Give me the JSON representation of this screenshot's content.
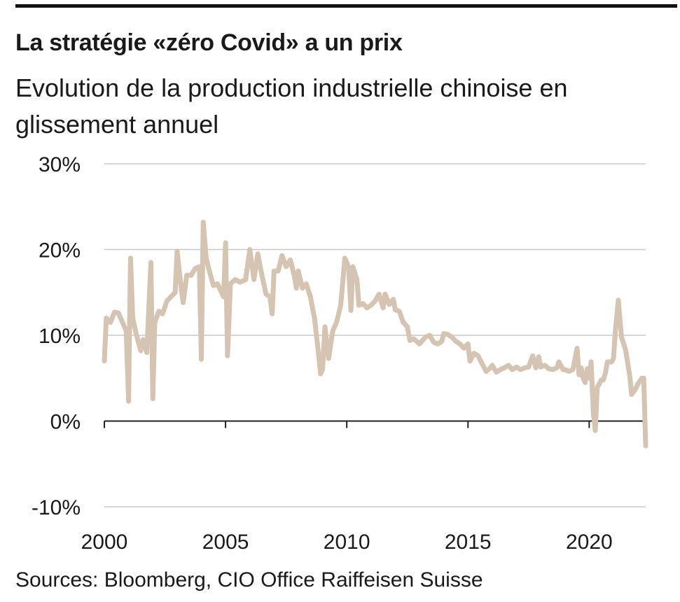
{
  "header": {
    "title": "La stratégie «zéro Covid» a un prix",
    "subtitle": "Evolution de la production industrielle chinoise en glissement annuel"
  },
  "footer": {
    "source": "Sources: Bloomberg, CIO Office Raiffeisen Suisse"
  },
  "colors": {
    "line": "#d6c4b2",
    "grid": "#c8c8c8",
    "axis": "#222222"
  },
  "chart_data": {
    "type": "line",
    "title": "La stratégie «zéro Covid» a un prix",
    "subtitle": "Evolution de la production industrielle chinoise en glissement annuel",
    "xlabel": "",
    "ylabel": "",
    "xlim": [
      2000,
      2022.33
    ],
    "ylim": [
      -10,
      30
    ],
    "y_ticks": [
      -10,
      0,
      10,
      20,
      30
    ],
    "y_tick_labels": [
      "-10%",
      "0%",
      "10%",
      "20%",
      "30%"
    ],
    "x_ticks": [
      2000,
      2005,
      2010,
      2015,
      2020
    ],
    "x_tick_labels": [
      "2000",
      "2005",
      "2010",
      "2015",
      "2020"
    ],
    "grid": true,
    "legend": "none",
    "series": [
      {
        "color": "#d6c4b2",
        "points": [
          [
            2000.0,
            7.0
          ],
          [
            2000.08,
            12.0
          ],
          [
            2000.25,
            11.5
          ],
          [
            2000.42,
            12.7
          ],
          [
            2000.58,
            12.6
          ],
          [
            2000.75,
            11.5
          ],
          [
            2000.9,
            10.5
          ],
          [
            2001.0,
            2.3
          ],
          [
            2001.08,
            19.0
          ],
          [
            2001.17,
            12.0
          ],
          [
            2001.33,
            10.0
          ],
          [
            2001.5,
            8.2
          ],
          [
            2001.6,
            9.5
          ],
          [
            2001.75,
            8.0
          ],
          [
            2001.92,
            18.5
          ],
          [
            2002.0,
            2.6
          ],
          [
            2002.08,
            11.5
          ],
          [
            2002.25,
            12.8
          ],
          [
            2002.4,
            12.5
          ],
          [
            2002.58,
            14.0
          ],
          [
            2002.75,
            14.5
          ],
          [
            2002.92,
            15.0
          ],
          [
            2003.0,
            19.8
          ],
          [
            2003.17,
            15.5
          ],
          [
            2003.25,
            13.8
          ],
          [
            2003.4,
            17.0
          ],
          [
            2003.58,
            17.0
          ],
          [
            2003.75,
            17.8
          ],
          [
            2003.92,
            18.0
          ],
          [
            2004.0,
            7.2
          ],
          [
            2004.08,
            23.2
          ],
          [
            2004.2,
            19.0
          ],
          [
            2004.33,
            17.5
          ],
          [
            2004.5,
            15.8
          ],
          [
            2004.67,
            16.0
          ],
          [
            2004.83,
            15.0
          ],
          [
            2004.92,
            14.5
          ],
          [
            2005.0,
            20.8
          ],
          [
            2005.08,
            7.6
          ],
          [
            2005.2,
            16.0
          ],
          [
            2005.4,
            16.5
          ],
          [
            2005.6,
            16.2
          ],
          [
            2005.83,
            16.5
          ],
          [
            2006.0,
            20.0
          ],
          [
            2006.17,
            16.5
          ],
          [
            2006.33,
            19.5
          ],
          [
            2006.5,
            17.0
          ],
          [
            2006.67,
            14.8
          ],
          [
            2006.83,
            14.5
          ],
          [
            2006.92,
            12.5
          ],
          [
            2007.0,
            17.5
          ],
          [
            2007.17,
            17.5
          ],
          [
            2007.33,
            19.3
          ],
          [
            2007.5,
            18.0
          ],
          [
            2007.67,
            18.8
          ],
          [
            2007.83,
            17.0
          ],
          [
            2007.92,
            15.5
          ],
          [
            2008.0,
            17.5
          ],
          [
            2008.17,
            15.5
          ],
          [
            2008.33,
            16.0
          ],
          [
            2008.5,
            14.5
          ],
          [
            2008.67,
            12.0
          ],
          [
            2008.83,
            8.0
          ],
          [
            2008.92,
            5.5
          ],
          [
            2009.0,
            6.0
          ],
          [
            2009.1,
            11.0
          ],
          [
            2009.25,
            7.3
          ],
          [
            2009.42,
            10.5
          ],
          [
            2009.58,
            11.5
          ],
          [
            2009.75,
            13.5
          ],
          [
            2009.92,
            19.0
          ],
          [
            2010.0,
            18.5
          ],
          [
            2010.08,
            17.8
          ],
          [
            2010.17,
            12.9
          ],
          [
            2010.25,
            18.0
          ],
          [
            2010.42,
            16.5
          ],
          [
            2010.5,
            13.5
          ],
          [
            2010.67,
            13.7
          ],
          [
            2010.83,
            13.2
          ],
          [
            2011.0,
            13.5
          ],
          [
            2011.17,
            14.0
          ],
          [
            2011.33,
            14.8
          ],
          [
            2011.5,
            13.2
          ],
          [
            2011.58,
            14.8
          ],
          [
            2011.75,
            13.6
          ],
          [
            2011.92,
            14.2
          ],
          [
            2012.0,
            13.0
          ],
          [
            2012.17,
            12.8
          ],
          [
            2012.33,
            11.5
          ],
          [
            2012.5,
            11.0
          ],
          [
            2012.6,
            9.4
          ],
          [
            2012.75,
            9.6
          ],
          [
            2012.92,
            9.2
          ],
          [
            2013.0,
            9.0
          ],
          [
            2013.25,
            9.8
          ],
          [
            2013.42,
            10.0
          ],
          [
            2013.58,
            9.2
          ],
          [
            2013.75,
            9.0
          ],
          [
            2013.92,
            9.3
          ],
          [
            2014.0,
            10.2
          ],
          [
            2014.17,
            10.1
          ],
          [
            2014.33,
            9.8
          ],
          [
            2014.5,
            9.3
          ],
          [
            2014.67,
            9.0
          ],
          [
            2014.83,
            8.5
          ],
          [
            2015.0,
            9.0
          ],
          [
            2015.08,
            7.0
          ],
          [
            2015.25,
            7.9
          ],
          [
            2015.42,
            7.6
          ],
          [
            2015.58,
            6.7
          ],
          [
            2015.75,
            5.8
          ],
          [
            2015.92,
            6.2
          ],
          [
            2016.0,
            6.5
          ],
          [
            2016.17,
            5.7
          ],
          [
            2016.33,
            6.0
          ],
          [
            2016.5,
            6.2
          ],
          [
            2016.67,
            6.5
          ],
          [
            2016.83,
            6.0
          ],
          [
            2017.0,
            6.3
          ],
          [
            2017.17,
            6.0
          ],
          [
            2017.33,
            6.2
          ],
          [
            2017.5,
            6.3
          ],
          [
            2017.67,
            7.6
          ],
          [
            2017.8,
            6.2
          ],
          [
            2017.92,
            7.5
          ],
          [
            2018.0,
            6.3
          ],
          [
            2018.17,
            6.5
          ],
          [
            2018.33,
            6.1
          ],
          [
            2018.5,
            6.0
          ],
          [
            2018.67,
            6.2
          ],
          [
            2018.75,
            6.9
          ],
          [
            2018.92,
            6.0
          ],
          [
            2019.0,
            6.0
          ],
          [
            2019.17,
            5.8
          ],
          [
            2019.33,
            6.0
          ],
          [
            2019.5,
            8.5
          ],
          [
            2019.58,
            5.4
          ],
          [
            2019.67,
            6.2
          ],
          [
            2019.75,
            5.0
          ],
          [
            2019.83,
            4.5
          ],
          [
            2019.92,
            6.1
          ],
          [
            2020.0,
            5.0
          ],
          [
            2020.08,
            6.9
          ],
          [
            2020.17,
            1.0
          ],
          [
            2020.25,
            -1.1
          ],
          [
            2020.33,
            3.9
          ],
          [
            2020.5,
            4.8
          ],
          [
            2020.58,
            4.8
          ],
          [
            2020.67,
            5.6
          ],
          [
            2020.75,
            6.9
          ],
          [
            2020.92,
            6.9
          ],
          [
            2021.0,
            7.3
          ],
          [
            2021.08,
            10.5
          ],
          [
            2021.2,
            14.1
          ],
          [
            2021.33,
            9.8
          ],
          [
            2021.5,
            8.3
          ],
          [
            2021.67,
            5.3
          ],
          [
            2021.75,
            3.1
          ],
          [
            2021.92,
            3.8
          ],
          [
            2022.0,
            4.3
          ],
          [
            2022.17,
            5.0
          ],
          [
            2022.25,
            5.0
          ],
          [
            2022.33,
            -2.9
          ]
        ]
      }
    ]
  }
}
